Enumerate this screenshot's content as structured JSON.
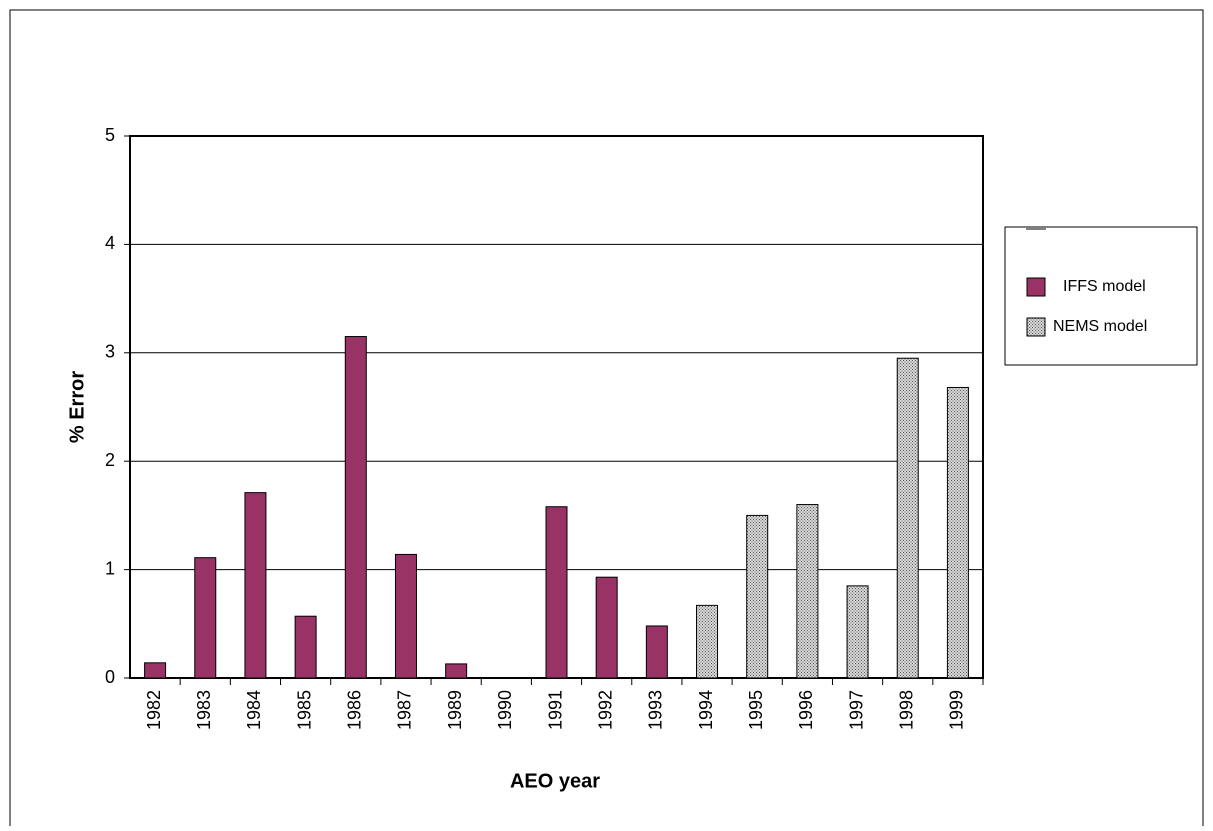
{
  "chart_data": {
    "type": "bar",
    "x_label": "AEO year",
    "y_label": "% Error",
    "categories": [
      "1982",
      "1983",
      "1984",
      "1985",
      "1986",
      "1987",
      "1989",
      "1990",
      "1991",
      "1992",
      "1993",
      "1994",
      "1995",
      "1996",
      "1997",
      "1998",
      "1999"
    ],
    "series": [
      {
        "name": "IFFS model",
        "color": "#993366",
        "pattern": "solid",
        "values": [
          0.14,
          1.11,
          1.71,
          0.57,
          3.15,
          1.14,
          0.13,
          0,
          1.58,
          0.93,
          0.48,
          null,
          null,
          null,
          null,
          null,
          null
        ]
      },
      {
        "name": "NEMS model",
        "color": "#d9d9d9",
        "pattern": "dots",
        "values": [
          null,
          null,
          null,
          null,
          null,
          null,
          null,
          null,
          null,
          null,
          null,
          0.67,
          1.5,
          1.6,
          0.85,
          2.95,
          2.68
        ]
      }
    ],
    "ylim": [
      0,
      5
    ],
    "yticks": [
      0,
      1,
      2,
      3,
      4,
      5
    ],
    "grid": true,
    "legend": "right"
  }
}
